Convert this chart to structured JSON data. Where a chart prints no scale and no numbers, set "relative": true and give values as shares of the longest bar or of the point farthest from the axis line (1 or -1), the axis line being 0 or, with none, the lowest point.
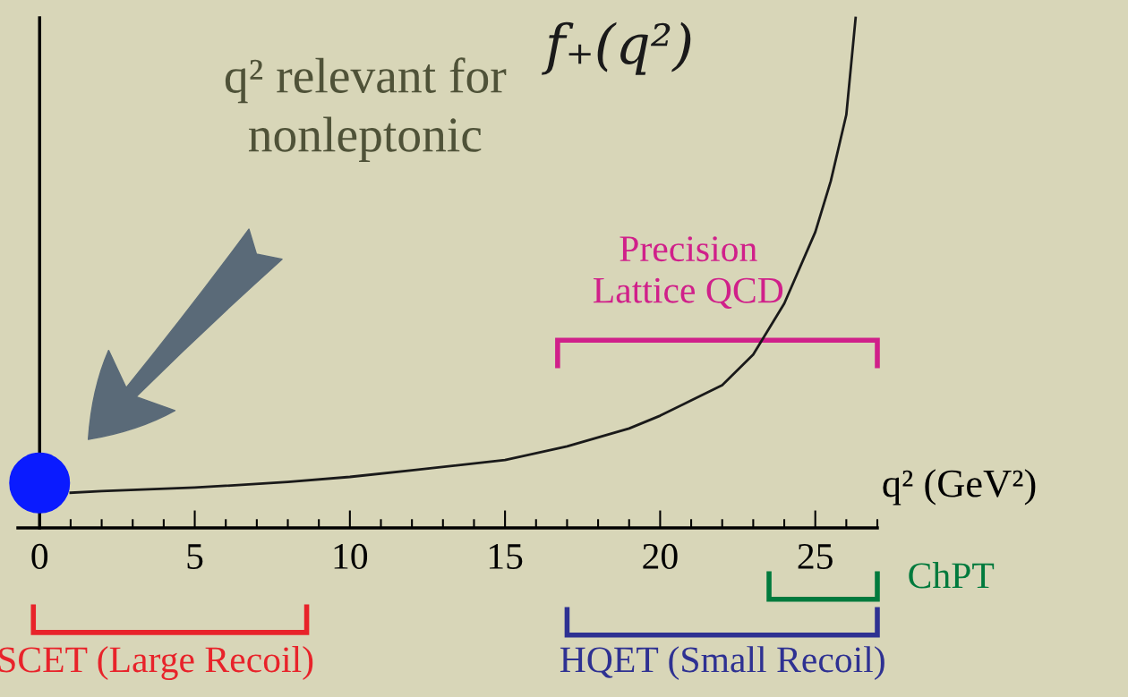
{
  "chart_data": {
    "type": "line",
    "relative": true,
    "xlabel": "q² (GeV²)",
    "xlim": [
      -0.7,
      27
    ],
    "xticks": [
      0,
      5,
      10,
      15,
      20,
      25
    ],
    "tick_labels": "x",
    "series": [
      {
        "name": "f₊(q²)",
        "color": "#1a1a1a",
        "x": [
          1,
          2,
          5,
          8,
          10,
          12,
          15,
          17,
          19,
          20,
          21,
          22,
          23,
          24,
          25,
          25.5,
          26,
          26.3
        ],
        "values": [
          0.069,
          0.072,
          0.079,
          0.09,
          0.1,
          0.113,
          0.133,
          0.16,
          0.195,
          0.22,
          0.25,
          0.28,
          0.34,
          0.44,
          0.58,
          0.68,
          0.81,
          1
        ]
      },
      {
        "type": "scatter",
        "color": "#0a1bff",
        "x": [
          0
        ],
        "values": [
          0.088
        ]
      }
    ],
    "annotations": [
      "q² relevant for\nnonleptonic",
      "Precision\nLattice QCD",
      "SCET (Large Recoil)",
      "HQET (Small Recoil)",
      "ChPT"
    ]
  }
}
